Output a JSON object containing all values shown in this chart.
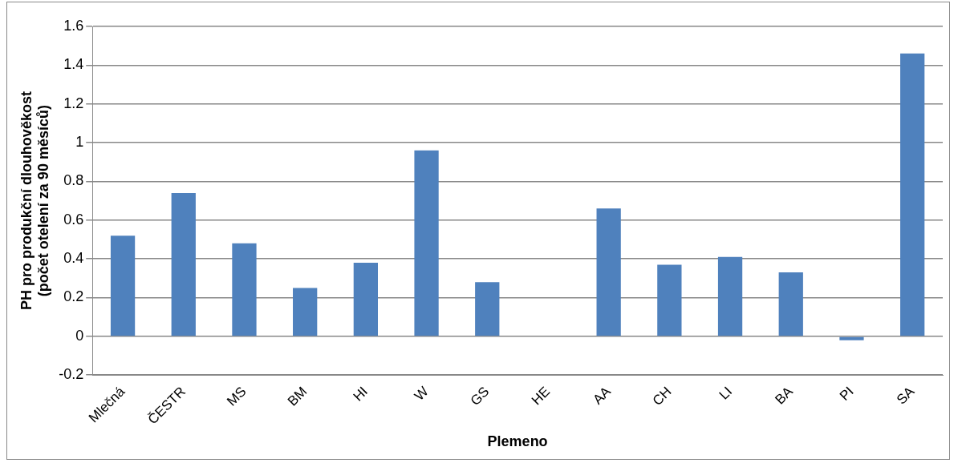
{
  "chart_data": {
    "type": "bar",
    "xlabel": "Plemeno",
    "ylabel": "PH pro produkční dlouhověkost\n(počet otelení za 90 měsíců)",
    "categories": [
      "Mlečná",
      "ČESTR",
      "MS",
      "BM",
      "HI",
      "W",
      "GS",
      "HE",
      "AA",
      "CH",
      "LI",
      "BA",
      "PI",
      "SA"
    ],
    "values": [
      0.52,
      0.74,
      0.48,
      0.25,
      0.38,
      0.96,
      0.28,
      0,
      0.66,
      0.37,
      0.41,
      0.33,
      -0.02,
      1.46
    ],
    "color": "#4f81bd",
    "ylim": [
      -0.2,
      1.6
    ],
    "yticks": [
      -0.2,
      0,
      0.2,
      0.4,
      0.6,
      0.8,
      1,
      1.2,
      1.4,
      1.6
    ],
    "grid": "y",
    "legend": false
  }
}
